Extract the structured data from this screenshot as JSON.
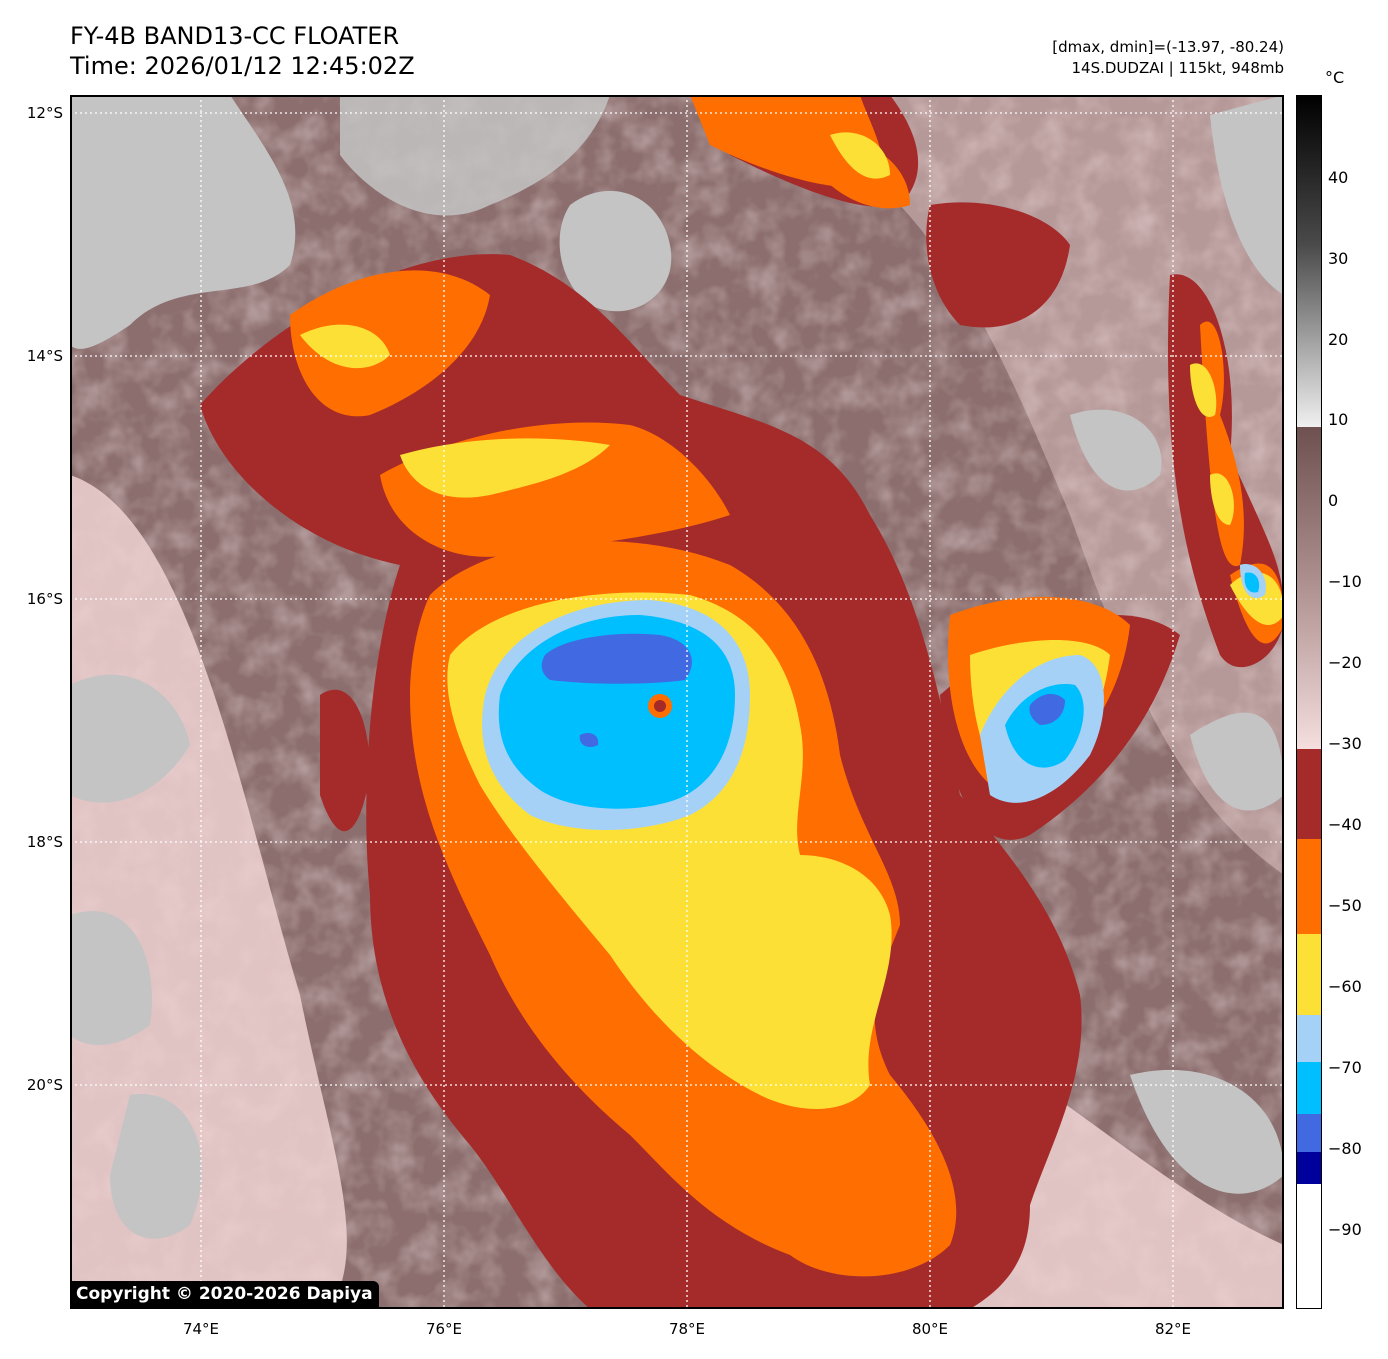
{
  "header": {
    "title_line1": "FY-4B BAND13-CC FLOATER",
    "title_line2": "Time: 2026/01/12 12:45:02Z",
    "info_line1": "[dmax, dmin]=(-13.97, -80.24)",
    "info_line2": "14S.DUDZAI | 115kt, 948mb"
  },
  "map": {
    "lat_labels": [
      "12°S",
      "14°S",
      "16°S",
      "18°S",
      "20°S"
    ],
    "lon_labels": [
      "74°E",
      "76°E",
      "78°E",
      "80°E",
      "82°E"
    ],
    "storm_center": {
      "lat": -16.9,
      "lon": 77.8
    },
    "copyright": "Copyright © 2020-2026 Dapiya"
  },
  "colorbar": {
    "unit": "°C",
    "range": [
      -100,
      50
    ],
    "ticks": [
      "40",
      "30",
      "20",
      "10",
      "0",
      "−10",
      "−20",
      "−30",
      "−40",
      "−50",
      "−60",
      "−70",
      "−80",
      "−90"
    ],
    "colors": {
      "minus90_below": "#ffffff",
      "minus90_minus80": "#00009c",
      "minus80_minus75": "#4169e1",
      "minus75_minus70": "#00bfff",
      "minus70_minus65": "#a6d1f7",
      "minus65_minus55": "#fde035",
      "minus55_minus45": "#ff6e00",
      "minus45_minus30": "#a52a2a",
      "cloud_warm": "#7e5e5e",
      "cloud_gray": "#b8b8b8",
      "light_pink": "#f2d5d5"
    }
  }
}
